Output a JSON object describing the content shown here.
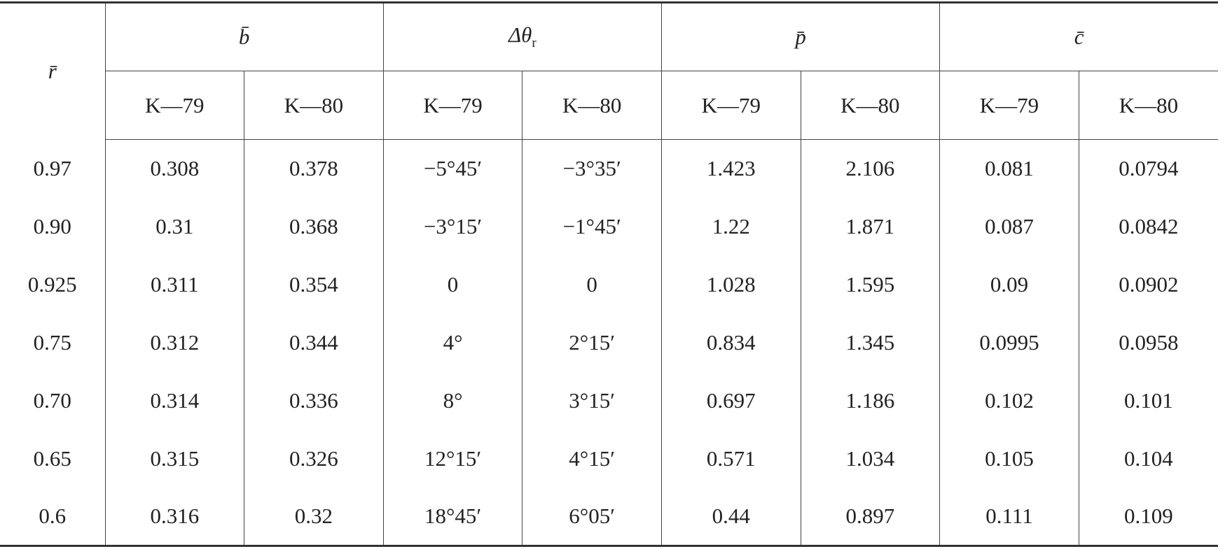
{
  "table": {
    "row_header": "r̄",
    "groups": [
      {
        "label": "b̄",
        "subcolumns": [
          "K—79",
          "K—80"
        ]
      },
      {
        "label": "Δθ",
        "subscript": "r",
        "subcolumns": [
          "K—79",
          "K—80"
        ]
      },
      {
        "label": "p̄",
        "subcolumns": [
          "K—79",
          "K—80"
        ]
      },
      {
        "label": "c̄",
        "subcolumns": [
          "K—79",
          "K—80"
        ]
      }
    ],
    "rows": [
      [
        "0.97",
        "0.308",
        "0.378",
        "−5°45′",
        "−3°35′",
        "1.423",
        "2.106",
        "0.081",
        "0.0794"
      ],
      [
        "0.90",
        "0.31",
        "0.368",
        "−3°15′",
        "−1°45′",
        "1.22",
        "1.871",
        "0.087",
        "0.0842"
      ],
      [
        "0.925",
        "0.311",
        "0.354",
        "0",
        "0",
        "1.028",
        "1.595",
        "0.09",
        "0.0902"
      ],
      [
        "0.75",
        "0.312",
        "0.344",
        "4°",
        "2°15′",
        "0.834",
        "1.345",
        "0.0995",
        "0.0958"
      ],
      [
        "0.70",
        "0.314",
        "0.336",
        "8°",
        "3°15′",
        "0.697",
        "1.186",
        "0.102",
        "0.101"
      ],
      [
        "0.65",
        "0.315",
        "0.326",
        "12°15′",
        "4°15′",
        "0.571",
        "1.034",
        "0.105",
        "0.104"
      ],
      [
        "0.6",
        "0.316",
        "0.32",
        "18°45′",
        "6°05′",
        "0.44",
        "0.897",
        "0.111",
        "0.109"
      ]
    ]
  }
}
